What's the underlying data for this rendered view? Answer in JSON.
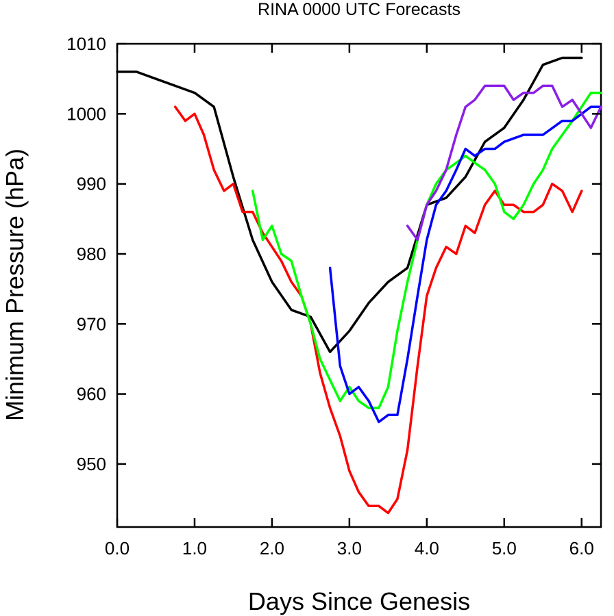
{
  "chart_data": {
    "type": "line",
    "title": "RINA 0000 UTC Forecasts",
    "xlabel": "Days Since Genesis",
    "ylabel": "Minimum Pressure (hPa)",
    "xlim": [
      0.0,
      6.25
    ],
    "ylim": [
      941.0,
      1010.0
    ],
    "xticks": [
      0.0,
      1.0,
      2.0,
      3.0,
      4.0,
      5.0,
      6.0
    ],
    "xtick_labels": [
      "0.0",
      "1.0",
      "2.0",
      "3.0",
      "4.0",
      "5.0",
      "6.0"
    ],
    "yticks": [
      950,
      960,
      970,
      980,
      990,
      1000,
      1010
    ],
    "ytick_labels": [
      "950",
      "960",
      "970",
      "980",
      "990",
      "1000",
      "1010"
    ],
    "grid": false,
    "series": [
      {
        "color": "#000000",
        "points": [
          [
            0,
            1006
          ],
          [
            0.25,
            1006
          ],
          [
            0.5,
            1005
          ],
          [
            0.75,
            1004
          ],
          [
            1.0,
            1003
          ],
          [
            1.25,
            1001
          ],
          [
            1.5,
            991
          ],
          [
            1.75,
            982
          ],
          [
            2.0,
            976
          ],
          [
            2.25,
            972
          ],
          [
            2.5,
            971
          ],
          [
            2.75,
            966
          ],
          [
            3.0,
            969
          ],
          [
            3.25,
            973
          ],
          [
            3.5,
            976
          ],
          [
            3.75,
            978
          ],
          [
            4.0,
            987
          ],
          [
            4.25,
            988
          ],
          [
            4.5,
            991
          ],
          [
            4.75,
            996
          ],
          [
            5.0,
            998
          ],
          [
            5.25,
            1002
          ],
          [
            5.5,
            1007
          ],
          [
            5.75,
            1008
          ],
          [
            6.0,
            1008
          ]
        ]
      },
      {
        "color": "#ff0000",
        "points": [
          [
            0.75,
            1001
          ],
          [
            0.88,
            999
          ],
          [
            1.0,
            1000
          ],
          [
            1.12,
            997
          ],
          [
            1.25,
            992
          ],
          [
            1.38,
            989
          ],
          [
            1.5,
            990
          ],
          [
            1.62,
            986
          ],
          [
            1.75,
            986
          ],
          [
            1.88,
            983
          ],
          [
            2.0,
            981
          ],
          [
            2.12,
            979
          ],
          [
            2.25,
            976
          ],
          [
            2.38,
            974
          ],
          [
            2.5,
            970
          ],
          [
            2.62,
            963
          ],
          [
            2.75,
            958
          ],
          [
            2.88,
            954
          ],
          [
            3.0,
            949
          ],
          [
            3.12,
            946
          ],
          [
            3.25,
            944
          ],
          [
            3.38,
            944
          ],
          [
            3.5,
            943
          ],
          [
            3.62,
            945
          ],
          [
            3.75,
            952
          ],
          [
            3.88,
            964
          ],
          [
            4.0,
            974
          ],
          [
            4.12,
            978
          ],
          [
            4.25,
            981
          ],
          [
            4.38,
            980
          ],
          [
            4.5,
            984
          ],
          [
            4.62,
            983
          ],
          [
            4.75,
            987
          ],
          [
            4.88,
            989
          ],
          [
            5.0,
            987
          ],
          [
            5.12,
            987
          ],
          [
            5.25,
            986
          ],
          [
            5.38,
            986
          ],
          [
            5.5,
            987
          ],
          [
            5.62,
            990
          ],
          [
            5.75,
            989
          ],
          [
            5.88,
            986
          ],
          [
            6.0,
            989
          ]
        ]
      },
      {
        "color": "#00ff00",
        "points": [
          [
            1.75,
            989
          ],
          [
            1.88,
            982
          ],
          [
            2.0,
            984
          ],
          [
            2.12,
            980
          ],
          [
            2.25,
            979
          ],
          [
            2.38,
            974
          ],
          [
            2.5,
            970
          ],
          [
            2.62,
            965
          ],
          [
            2.75,
            962
          ],
          [
            2.88,
            959
          ],
          [
            3.0,
            961
          ],
          [
            3.12,
            959
          ],
          [
            3.25,
            958
          ],
          [
            3.38,
            958
          ],
          [
            3.5,
            961
          ],
          [
            3.62,
            969
          ],
          [
            3.75,
            976
          ],
          [
            3.88,
            982
          ],
          [
            4.0,
            987
          ],
          [
            4.12,
            990
          ],
          [
            4.25,
            992
          ],
          [
            4.38,
            993
          ],
          [
            4.5,
            994
          ],
          [
            4.62,
            993
          ],
          [
            4.75,
            992
          ],
          [
            4.88,
            990
          ],
          [
            5.0,
            986
          ],
          [
            5.12,
            985
          ],
          [
            5.25,
            987
          ],
          [
            5.38,
            990
          ],
          [
            5.5,
            992
          ],
          [
            5.62,
            995
          ],
          [
            5.75,
            997
          ],
          [
            5.88,
            999
          ],
          [
            6.0,
            1001
          ],
          [
            6.12,
            1003
          ],
          [
            6.25,
            1003
          ]
        ]
      },
      {
        "color": "#0000ff",
        "points": [
          [
            2.75,
            978
          ],
          [
            2.88,
            964
          ],
          [
            3.0,
            960
          ],
          [
            3.12,
            961
          ],
          [
            3.25,
            959
          ],
          [
            3.38,
            956
          ],
          [
            3.5,
            957
          ],
          [
            3.62,
            957
          ],
          [
            3.75,
            965
          ],
          [
            3.88,
            974
          ],
          [
            4.0,
            982
          ],
          [
            4.12,
            987
          ],
          [
            4.25,
            989
          ],
          [
            4.38,
            992
          ],
          [
            4.5,
            995
          ],
          [
            4.62,
            994
          ],
          [
            4.75,
            995
          ],
          [
            4.88,
            995
          ],
          [
            5.0,
            996
          ],
          [
            5.25,
            997
          ],
          [
            5.5,
            997
          ],
          [
            5.75,
            999
          ],
          [
            5.88,
            999
          ],
          [
            6.0,
            1000
          ],
          [
            6.12,
            1001
          ],
          [
            6.25,
            1001
          ]
        ]
      },
      {
        "color": "#8b1fe6",
        "points": [
          [
            3.75,
            984
          ],
          [
            3.88,
            982
          ],
          [
            4.0,
            987
          ],
          [
            4.12,
            989
          ],
          [
            4.25,
            992
          ],
          [
            4.38,
            997
          ],
          [
            4.5,
            1001
          ],
          [
            4.62,
            1002
          ],
          [
            4.75,
            1004
          ],
          [
            4.88,
            1004
          ],
          [
            5.0,
            1004
          ],
          [
            5.12,
            1002
          ],
          [
            5.25,
            1003
          ],
          [
            5.38,
            1003
          ],
          [
            5.5,
            1004
          ],
          [
            5.62,
            1004
          ],
          [
            5.75,
            1001
          ],
          [
            5.88,
            1002
          ],
          [
            6.0,
            1000
          ],
          [
            6.12,
            998
          ],
          [
            6.25,
            1001
          ]
        ]
      }
    ]
  }
}
